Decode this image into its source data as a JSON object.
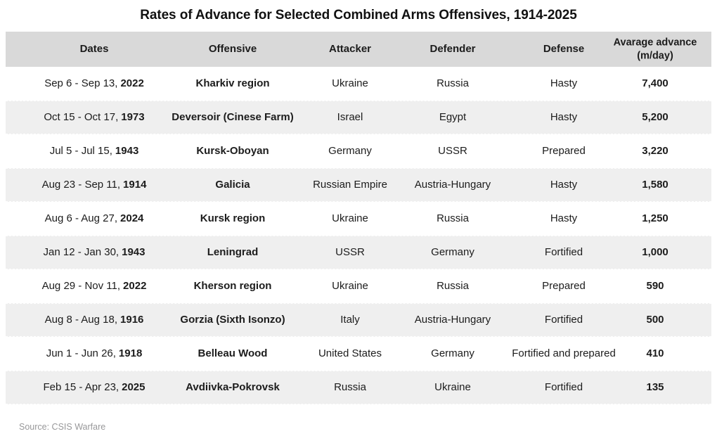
{
  "title": "Rates of Advance for Selected Combined Arms Offensives, 1914-2025",
  "table": {
    "columns": [
      "Dates",
      "Offensive",
      "Attacker",
      "Defender",
      "Defense",
      "Avarage advance (m/day)"
    ],
    "rows": [
      {
        "date_range": "Sep 6 - Sep 13,",
        "year": "2022",
        "offensive": "Kharkiv region",
        "attacker": "Ukraine",
        "defender": "Russia",
        "defense": "Hasty",
        "advance": "7,400"
      },
      {
        "date_range": "Oct 15 - Oct 17,",
        "year": "1973",
        "offensive": "Deversoir (Cinese Farm)",
        "attacker": "Israel",
        "defender": "Egypt",
        "defense": "Hasty",
        "advance": "5,200"
      },
      {
        "date_range": "Jul 5 - Jul 15,",
        "year": "1943",
        "offensive": "Kursk-Oboyan",
        "attacker": "Germany",
        "defender": "USSR",
        "defense": "Prepared",
        "advance": "3,220"
      },
      {
        "date_range": "Aug 23 - Sep 11,",
        "year": "1914",
        "offensive": "Galicia",
        "attacker": "Russian Empire",
        "defender": "Austria-Hungary",
        "defense": "Hasty",
        "advance": "1,580"
      },
      {
        "date_range": "Aug 6 - Aug 27,",
        "year": "2024",
        "offensive": "Kursk region",
        "attacker": "Ukraine",
        "defender": "Russia",
        "defense": "Hasty",
        "advance": "1,250"
      },
      {
        "date_range": "Jan 12 - Jan 30,",
        "year": "1943",
        "offensive": "Leningrad",
        "attacker": "USSR",
        "defender": "Germany",
        "defense": "Fortified",
        "advance": "1,000"
      },
      {
        "date_range": "Aug 29 - Nov 11,",
        "year": "2022",
        "offensive": "Kherson region",
        "attacker": "Ukraine",
        "defender": "Russia",
        "defense": "Prepared",
        "advance": "590"
      },
      {
        "date_range": "Aug 8 - Aug 18,",
        "year": "1916",
        "offensive": "Gorzia (Sixth Isonzo)",
        "attacker": "Italy",
        "defender": "Austria-Hungary",
        "defense": "Fortified",
        "advance": "500"
      },
      {
        "date_range": "Jun 1 - Jun 26,",
        "year": "1918",
        "offensive": "Belleau Wood",
        "attacker": "United States",
        "defender": "Germany",
        "defense": "Fortified and prepared",
        "advance": "410"
      },
      {
        "date_range": "Feb 15 - Apr 23,",
        "year": "2025",
        "offensive": "Avdiivka-Pokrovsk",
        "attacker": "Russia",
        "defender": "Ukraine",
        "defense": "Fortified",
        "advance": "135"
      }
    ]
  },
  "source": "Source: CSIS Warfare",
  "colors": {
    "header_bg": "#d9d9d9",
    "row_alt_bg": "#efefef",
    "text": "#1c1c1c",
    "source_text": "#98989a"
  },
  "chart_data": {
    "type": "table",
    "title": "Rates of Advance for Selected Combined Arms Offensives, 1914-2025",
    "columns": [
      "Dates",
      "Offensive",
      "Attacker",
      "Defender",
      "Defense",
      "Avarage advance (m/day)"
    ],
    "rows": [
      [
        "Sep 6 - Sep 13, 2022",
        "Kharkiv region",
        "Ukraine",
        "Russia",
        "Hasty",
        7400
      ],
      [
        "Oct 15 - Oct 17, 1973",
        "Deversoir (Cinese Farm)",
        "Israel",
        "Egypt",
        "Hasty",
        5200
      ],
      [
        "Jul 5 - Jul 15, 1943",
        "Kursk-Oboyan",
        "Germany",
        "USSR",
        "Prepared",
        3220
      ],
      [
        "Aug 23 - Sep 11, 1914",
        "Galicia",
        "Russian Empire",
        "Austria-Hungary",
        "Hasty",
        1580
      ],
      [
        "Aug 6 - Aug 27, 2024",
        "Kursk region",
        "Ukraine",
        "Russia",
        "Hasty",
        1250
      ],
      [
        "Jan 12 - Jan 30, 1943",
        "Leningrad",
        "USSR",
        "Germany",
        "Fortified",
        1000
      ],
      [
        "Aug 29 - Nov 11, 2022",
        "Kherson region",
        "Ukraine",
        "Russia",
        "Prepared",
        590
      ],
      [
        "Aug 8 - Aug 18, 1916",
        "Gorzia (Sixth Isonzo)",
        "Italy",
        "Austria-Hungary",
        "Fortified",
        500
      ],
      [
        "Jun 1 - Jun 26, 1918",
        "Belleau Wood",
        "United States",
        "Germany",
        "Fortified and prepared",
        410
      ],
      [
        "Feb 15 - Apr 23, 2025",
        "Avdiivka-Pokrovsk",
        "Russia",
        "Ukraine",
        "Fortified",
        135
      ]
    ],
    "source": "CSIS Warfare"
  }
}
